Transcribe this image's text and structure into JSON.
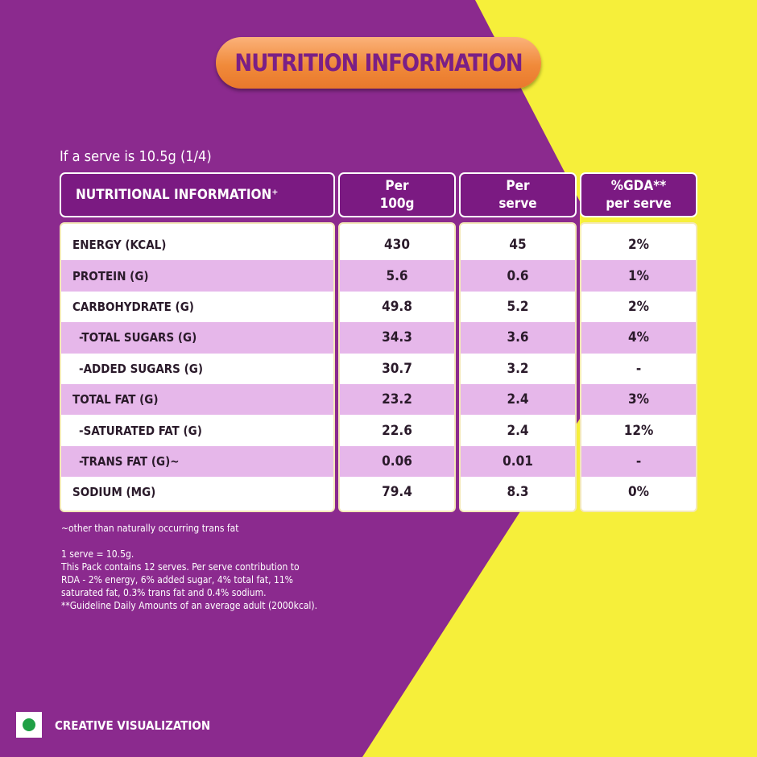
{
  "title": "NUTRITION INFORMATION",
  "serve_note": "If a serve is 10.5g (1/4)",
  "headers": [
    "NUTRITIONAL INFORMATION⁺",
    "Per 100g",
    "Per serve",
    "%GDA** per serve"
  ],
  "rows": [
    {
      "label": "ENERGY (KCAL)",
      "per100": "430",
      "serve": "45",
      "gda": "2%"
    },
    {
      "label": "PROTEIN (G)",
      "per100": "5.6",
      "serve": "0.6",
      "gda": "1%"
    },
    {
      "label": "CARBOHYDRATE (G)",
      "per100": "49.8",
      "serve": "5.2",
      "gda": "2%"
    },
    {
      "label": "-TOTAL SUGARS (G)",
      "per100": "34.3",
      "serve": "3.6",
      "gda": "4%"
    },
    {
      "label": "-ADDED SUGARS (G)",
      "per100": "30.7",
      "serve": "3.2",
      "gda": "-"
    },
    {
      "label": "TOTAL FAT (G)",
      "per100": "23.2",
      "serve": "2.4",
      "gda": "3%"
    },
    {
      "label": "-SATURATED FAT (G)",
      "per100": "22.6",
      "serve": "2.4",
      "gda": "12%"
    },
    {
      "label": "-TRANS FAT (G)~",
      "per100": "0.06",
      "serve": "0.01",
      "gda": "-"
    },
    {
      "label": "SODIUM (MG)",
      "per100": "79.4",
      "serve": "8.3",
      "gda": "0%"
    }
  ],
  "notes": {
    "trans": "~other than naturally occurring trans fat",
    "l1": "1 serve = 10.5g.",
    "l2": "This Pack contains 12 serves.  Per serve contribution to",
    "l3": "RDA - 2% energy, 6% added sugar, 4% total fat, 11%",
    "l4": "saturated fat, 0.3% trans fat and 0.4% sodium.",
    "l5": "**Guideline Daily Amounts of an average adult (2000kcal)."
  },
  "footer": "CREATIVE VISUALIZATION",
  "colors": {
    "purple": "#8b2a8e",
    "yellow": "#f6ef3a",
    "orange": "#f08a3a",
    "lavender": "#e6b7ea"
  }
}
